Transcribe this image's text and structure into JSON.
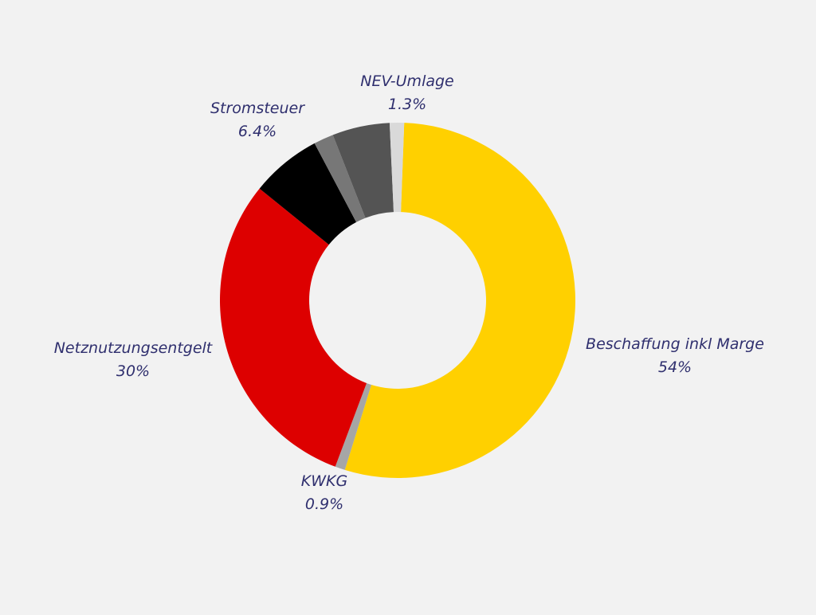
{
  "chart_data": {
    "type": "pie",
    "donut": true,
    "slices": [
      {
        "name": "Beschaffung inkl Marge",
        "value": 54,
        "label": "54%",
        "color": "#ffd000",
        "labeled": true
      },
      {
        "name": "KWKG",
        "value": 0.9,
        "label": "0.9%",
        "color": "#a6a6a6",
        "labeled": true
      },
      {
        "name": "Netznutzungsentgelt",
        "value": 30,
        "label": "30%",
        "color": "#dd0000",
        "labeled": true
      },
      {
        "name": "Stromsteuer",
        "value": 6.4,
        "label": "6.4%",
        "color": "#000000",
        "labeled": true
      },
      {
        "name": "",
        "value": 1.8,
        "label": "",
        "color": "#777777",
        "labeled": false
      },
      {
        "name": "",
        "value": 5.2,
        "label": "",
        "color": "#545454",
        "labeled": false
      },
      {
        "name": "NEV-Umlage",
        "value": 1.3,
        "label": "1.3%",
        "color": "#d9d9d9",
        "labeled": true
      }
    ]
  }
}
